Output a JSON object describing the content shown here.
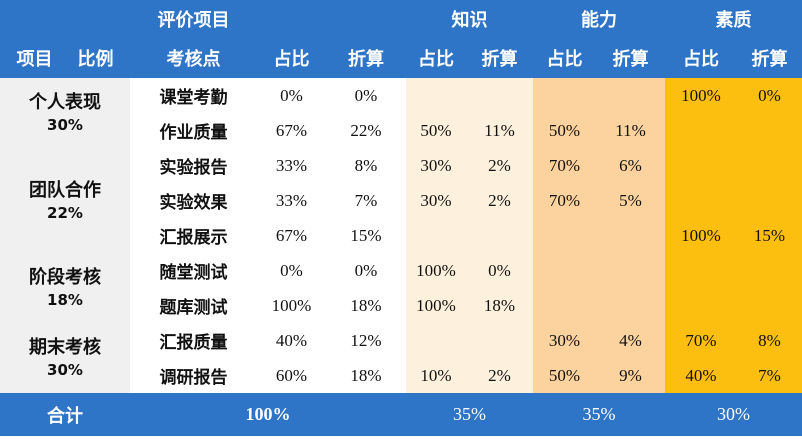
{
  "header": {
    "eval_items": "评价项目",
    "knowledge": "知识",
    "ability": "能力",
    "quality": "素质",
    "project": "项目",
    "ratio": "比例",
    "assessment_point": "考核点",
    "share": "占比",
    "conversion": "折算"
  },
  "projects": [
    {
      "name": "个人表现",
      "percent": "30%"
    },
    {
      "name": "团队合作",
      "percent": "22%"
    },
    {
      "name": "阶段考核",
      "percent": "18%"
    },
    {
      "name": "期末考核",
      "percent": "30%"
    }
  ],
  "rows": [
    {
      "point": "课堂考勤",
      "gen_share": "0%",
      "gen_conv": "0%",
      "know_share": "",
      "know_conv": "",
      "abil_share": "",
      "abil_conv": "",
      "qual_share": "100%",
      "qual_conv": "0%"
    },
    {
      "point": "作业质量",
      "gen_share": "67%",
      "gen_conv": "22%",
      "know_share": "50%",
      "know_conv": "11%",
      "abil_share": "50%",
      "abil_conv": "11%",
      "qual_share": "",
      "qual_conv": ""
    },
    {
      "point": "实验报告",
      "gen_share": "33%",
      "gen_conv": "8%",
      "know_share": "30%",
      "know_conv": "2%",
      "abil_share": "70%",
      "abil_conv": "6%",
      "qual_share": "",
      "qual_conv": ""
    },
    {
      "point": "实验效果",
      "gen_share": "33%",
      "gen_conv": "7%",
      "know_share": "30%",
      "know_conv": "2%",
      "abil_share": "70%",
      "abil_conv": "5%",
      "qual_share": "",
      "qual_conv": ""
    },
    {
      "point": "汇报展示",
      "gen_share": "67%",
      "gen_conv": "15%",
      "know_share": "",
      "know_conv": "",
      "abil_share": "",
      "abil_conv": "",
      "qual_share": "100%",
      "qual_conv": "15%"
    },
    {
      "point": "随堂测试",
      "gen_share": "0%",
      "gen_conv": "0%",
      "know_share": "100%",
      "know_conv": "0%",
      "abil_share": "",
      "abil_conv": "",
      "qual_share": "",
      "qual_conv": ""
    },
    {
      "point": "题库测试",
      "gen_share": "100%",
      "gen_conv": "18%",
      "know_share": "100%",
      "know_conv": "18%",
      "abil_share": "",
      "abil_conv": "",
      "qual_share": "",
      "qual_conv": ""
    },
    {
      "point": "汇报质量",
      "gen_share": "40%",
      "gen_conv": "12%",
      "know_share": "",
      "know_conv": "",
      "abil_share": "30%",
      "abil_conv": "4%",
      "qual_share": "70%",
      "qual_conv": "8%"
    },
    {
      "point": "调研报告",
      "gen_share": "60%",
      "gen_conv": "18%",
      "know_share": "10%",
      "know_conv": "2%",
      "abil_share": "50%",
      "abil_conv": "9%",
      "qual_share": "40%",
      "qual_conv": "7%"
    }
  ],
  "footer": {
    "label": "合计",
    "total": "100%",
    "knowledge": "35%",
    "ability": "35%",
    "quality": "30%"
  },
  "colors": {
    "header_blue": "#2e74c7",
    "project_gray": "#f0f0f0",
    "knowledge_bg": "#fdf0dc",
    "ability_bg": "#fcd29f",
    "quality_bg": "#fdbf0f"
  }
}
